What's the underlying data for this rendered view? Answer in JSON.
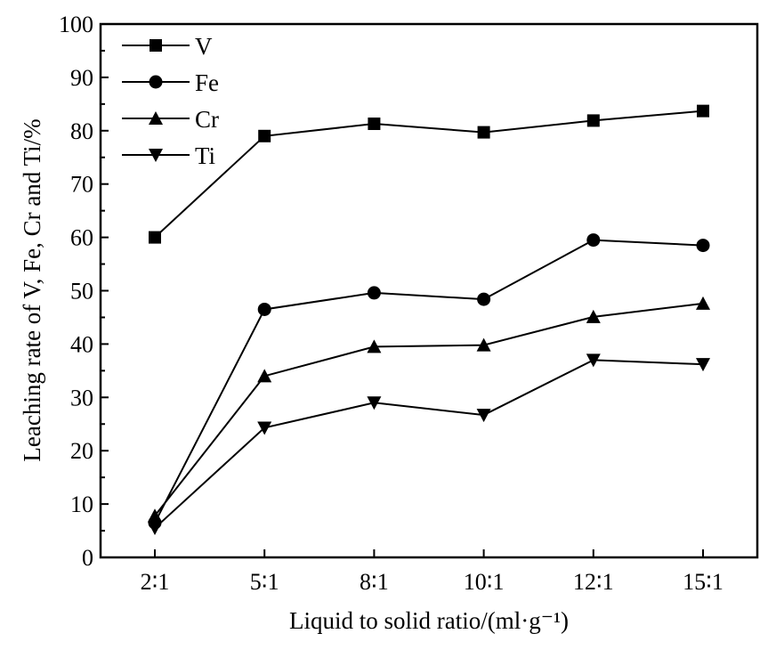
{
  "chart_data": {
    "type": "line",
    "title": "",
    "xlabel": "Liquid to solid ratio/(ml·g⁻¹)",
    "ylabel": "Leaching rate of V, Fe, Cr and Ti/%",
    "categories": [
      "2∶1",
      "5∶1",
      "8∶1",
      "10∶1",
      "12∶1",
      "15∶1"
    ],
    "ylim": [
      0,
      100
    ],
    "yticks": [
      0,
      10,
      20,
      30,
      40,
      50,
      60,
      70,
      80,
      90,
      100
    ],
    "grid": false,
    "legend_position": "top-left",
    "series": [
      {
        "name": "V",
        "marker": "square",
        "values": [
          60.0,
          79.0,
          81.3,
          79.7,
          81.9,
          83.7
        ]
      },
      {
        "name": "Fe",
        "marker": "circle",
        "values": [
          6.5,
          46.5,
          49.6,
          48.4,
          59.5,
          58.5
        ]
      },
      {
        "name": "Cr",
        "marker": "triangle-up",
        "values": [
          7.8,
          34.0,
          39.5,
          39.8,
          45.1,
          47.6
        ]
      },
      {
        "name": "Ti",
        "marker": "triangle-down",
        "values": [
          5.5,
          24.3,
          29.0,
          26.7,
          37.0,
          36.2
        ]
      }
    ],
    "color": "#000000"
  }
}
